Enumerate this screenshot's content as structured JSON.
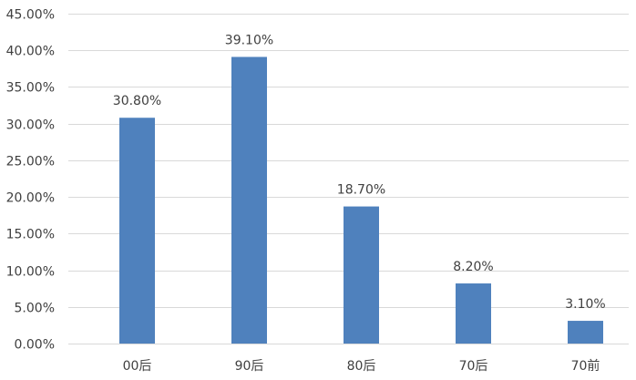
{
  "chart_data": {
    "type": "bar",
    "title": "",
    "xlabel": "",
    "ylabel": "",
    "categories": [
      "00后",
      "90后",
      "80后",
      "70后",
      "70前"
    ],
    "values": [
      30.8,
      39.1,
      18.7,
      8.2,
      3.1
    ],
    "data_labels": [
      "30.80%",
      "39.10%",
      "18.70%",
      "8.20%",
      "3.10%"
    ],
    "ylim": [
      0,
      45
    ],
    "yticks": [
      0,
      5,
      10,
      15,
      20,
      25,
      30,
      35,
      40,
      45
    ],
    "ytick_labels": [
      "0.00%",
      "5.00%",
      "10.00%",
      "15.00%",
      "20.00%",
      "25.00%",
      "30.00%",
      "35.00%",
      "40.00%",
      "45.00%"
    ],
    "grid": true,
    "legend": "none",
    "bar_color": "#4f81bd"
  }
}
